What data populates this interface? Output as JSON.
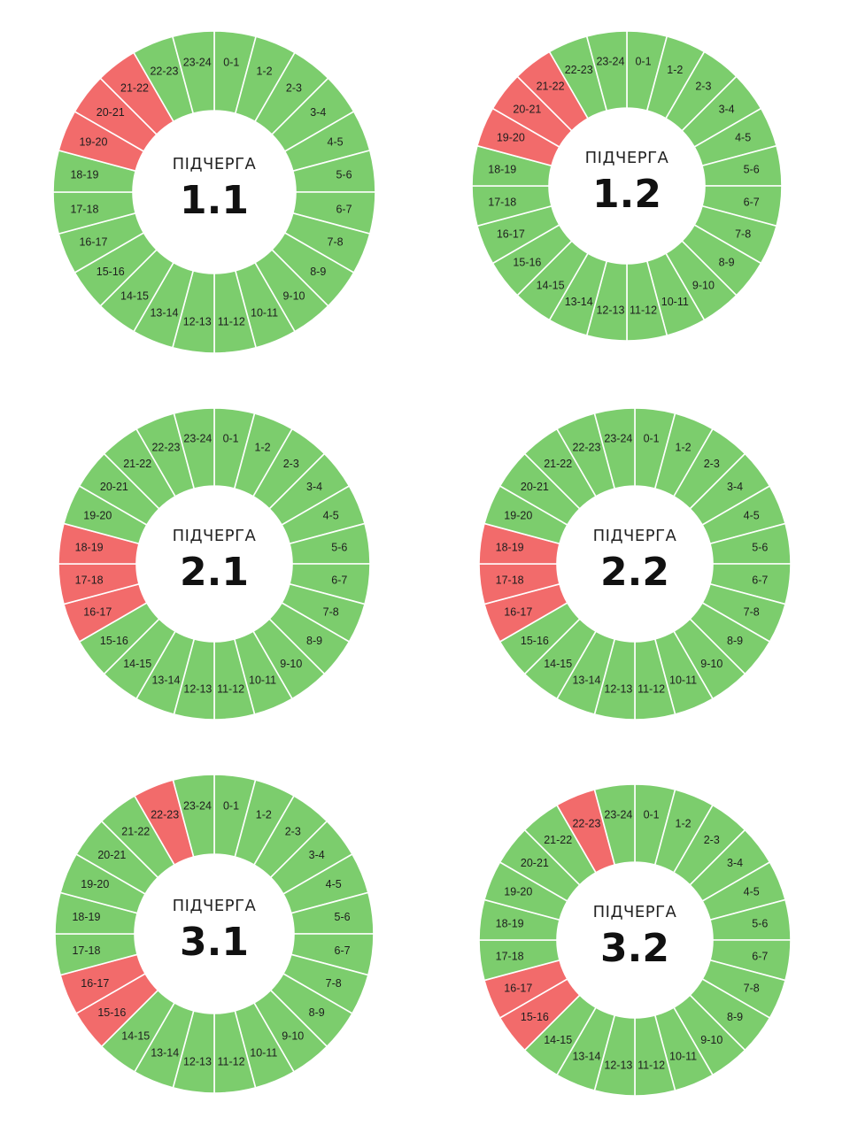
{
  "colors": {
    "on": "#7ccd6d",
    "off": "#f26b6b",
    "divider": "#ffffff",
    "background": "#ffffff"
  },
  "legend_word": "ПІДЧЕРГА",
  "chart_data": [
    {
      "type": "donut",
      "title": "1.1",
      "categories": [
        "0-1",
        "1-2",
        "2-3",
        "3-4",
        "4-5",
        "5-6",
        "6-7",
        "7-8",
        "8-9",
        "9-10",
        "10-11",
        "11-12",
        "12-13",
        "13-14",
        "14-15",
        "15-16",
        "16-17",
        "17-18",
        "18-19",
        "19-20",
        "20-21",
        "21-22",
        "22-23",
        "23-24"
      ],
      "off_slots": [
        "19-20",
        "20-21",
        "21-22"
      ]
    },
    {
      "type": "donut",
      "title": "1.2",
      "categories": [
        "0-1",
        "1-2",
        "2-3",
        "3-4",
        "4-5",
        "5-6",
        "6-7",
        "7-8",
        "8-9",
        "9-10",
        "10-11",
        "11-12",
        "12-13",
        "13-14",
        "14-15",
        "15-16",
        "16-17",
        "17-18",
        "18-19",
        "19-20",
        "20-21",
        "21-22",
        "22-23",
        "23-24"
      ],
      "off_slots": [
        "19-20",
        "20-21",
        "21-22"
      ]
    },
    {
      "type": "donut",
      "title": "2.1",
      "categories": [
        "0-1",
        "1-2",
        "2-3",
        "3-4",
        "4-5",
        "5-6",
        "6-7",
        "7-8",
        "8-9",
        "9-10",
        "10-11",
        "11-12",
        "12-13",
        "13-14",
        "14-15",
        "15-16",
        "16-17",
        "17-18",
        "18-19",
        "19-20",
        "20-21",
        "21-22",
        "22-23",
        "23-24"
      ],
      "off_slots": [
        "16-17",
        "17-18",
        "18-19"
      ]
    },
    {
      "type": "donut",
      "title": "2.2",
      "categories": [
        "0-1",
        "1-2",
        "2-3",
        "3-4",
        "4-5",
        "5-6",
        "6-7",
        "7-8",
        "8-9",
        "9-10",
        "10-11",
        "11-12",
        "12-13",
        "13-14",
        "14-15",
        "15-16",
        "16-17",
        "17-18",
        "18-19",
        "19-20",
        "20-21",
        "21-22",
        "22-23",
        "23-24"
      ],
      "off_slots": [
        "16-17",
        "17-18",
        "18-19"
      ]
    },
    {
      "type": "donut",
      "title": "3.1",
      "categories": [
        "0-1",
        "1-2",
        "2-3",
        "3-4",
        "4-5",
        "5-6",
        "6-7",
        "7-8",
        "8-9",
        "9-10",
        "10-11",
        "11-12",
        "12-13",
        "13-14",
        "14-15",
        "15-16",
        "16-17",
        "17-18",
        "18-19",
        "19-20",
        "20-21",
        "21-22",
        "22-23",
        "23-24"
      ],
      "off_slots": [
        "15-16",
        "16-17",
        "22-23"
      ]
    },
    {
      "type": "donut",
      "title": "3.2",
      "categories": [
        "0-1",
        "1-2",
        "2-3",
        "3-4",
        "4-5",
        "5-6",
        "6-7",
        "7-8",
        "8-9",
        "9-10",
        "10-11",
        "11-12",
        "12-13",
        "13-14",
        "14-15",
        "15-16",
        "16-17",
        "17-18",
        "18-19",
        "19-20",
        "20-21",
        "21-22",
        "22-23",
        "23-24"
      ],
      "off_slots": [
        "15-16",
        "16-17",
        "22-23"
      ]
    }
  ]
}
